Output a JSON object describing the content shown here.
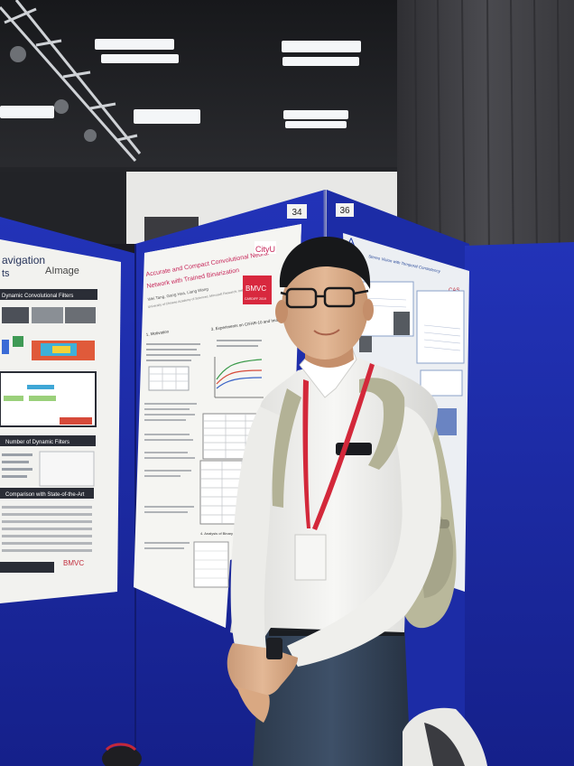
{
  "photo": {
    "description_free": true,
    "board_numbers": {
      "left": "34",
      "right": "36"
    },
    "left_poster": {
      "heading_fragment": "avigation",
      "sub_fragment": "ts",
      "logo_text": "AImage",
      "section_1": "Dynamic Convolutional Filters",
      "section_2": "Number of Dynamic Filters",
      "section_3": "Comparison with State-of-the-Art",
      "footer_logo": "BMVC"
    },
    "center_poster": {
      "title_line_1": "Accurate and Compact Convolutional Neural",
      "title_line_2": "Network with Trained Binarization",
      "authors": "Wei Tang, Gang Hua, Liang Wang",
      "affiliation": "University of Chinese Academy of Sciences; Microsoft Research; Institute of Automation",
      "logo_1": "CityU",
      "logo_2_line_1": "BMVC",
      "logo_2_line_2": "CARDIFF 2019",
      "section_1": "1. Motivation",
      "section_2": "3. Experiments on CIFAR-10 and ImageNet",
      "section_3": "4. Analysis of Binary Models"
    },
    "right_poster": {
      "title": "Stereo Vision with Temporal Consistency",
      "logo": "CAS",
      "logo_2": "A"
    },
    "badge": {
      "text": ""
    }
  },
  "colors": {
    "board_blue": "#1f2fb0",
    "board_blue_dark": "#16228a",
    "ceiling": "#202226",
    "curtain": "#3a3a3e",
    "shirt": "#f2f2f0",
    "lanyard": "#d3283a",
    "backpack": "#b8b79a"
  }
}
